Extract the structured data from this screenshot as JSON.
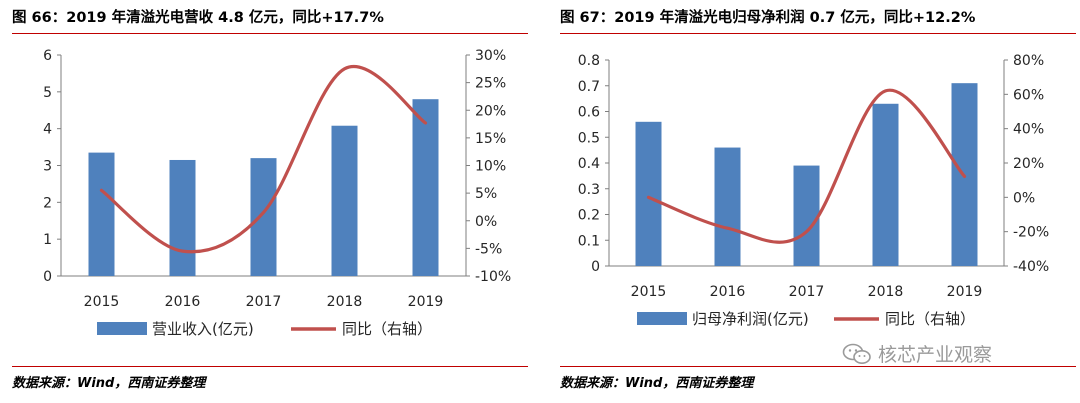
{
  "source_text": "数据来源：Wind，西南证券整理",
  "watermark_text": "核芯产业观察",
  "colors": {
    "bar": "#4f81bd",
    "line": "#c0504d",
    "rule": "#c00000",
    "axis": "#7f7f7f"
  },
  "chart_data": [
    {
      "type": "bar",
      "title": "图 66：2019 年清溢光电营收 4.8 亿元，同比+17.7%",
      "categories": [
        "2015",
        "2016",
        "2017",
        "2018",
        "2019"
      ],
      "ylim": [
        0,
        6
      ],
      "yticks": [
        "0",
        "1",
        "2",
        "3",
        "4",
        "5",
        "6"
      ],
      "y2lim": [
        -10,
        30
      ],
      "y2ticks": [
        "-10%",
        "-5%",
        "0%",
        "5%",
        "10%",
        "15%",
        "20%",
        "25%",
        "30%"
      ],
      "series": [
        {
          "name": "营业收入(亿元)",
          "type": "bar",
          "axis": "left",
          "values": [
            3.35,
            3.15,
            3.2,
            4.08,
            4.8
          ]
        },
        {
          "name": "同比（右轴）",
          "type": "line",
          "axis": "right",
          "values": [
            5.5,
            -5.5,
            1.5,
            27.5,
            17.7
          ]
        }
      ],
      "grid": false,
      "legend_position": "bottom"
    },
    {
      "type": "bar",
      "title": "图 67：2019 年清溢光电归母净利润 0.7 亿元，同比+12.2%",
      "categories": [
        "2015",
        "2016",
        "2017",
        "2018",
        "2019"
      ],
      "ylim": [
        0,
        0.8
      ],
      "yticks": [
        "0",
        "0.1",
        "0.2",
        "0.3",
        "0.4",
        "0.5",
        "0.6",
        "0.7",
        "0.8"
      ],
      "y2lim": [
        -40,
        80
      ],
      "y2ticks": [
        "-40%",
        "-20%",
        "0%",
        "20%",
        "40%",
        "60%",
        "80%"
      ],
      "series": [
        {
          "name": "归母净利润(亿元)",
          "type": "bar",
          "axis": "left",
          "values": [
            0.56,
            0.46,
            0.39,
            0.63,
            0.71
          ]
        },
        {
          "name": "同比（右轴）",
          "type": "line",
          "axis": "right",
          "values": [
            0,
            -18,
            -20,
            62,
            12.2
          ]
        }
      ],
      "grid": false,
      "legend_position": "bottom"
    }
  ]
}
